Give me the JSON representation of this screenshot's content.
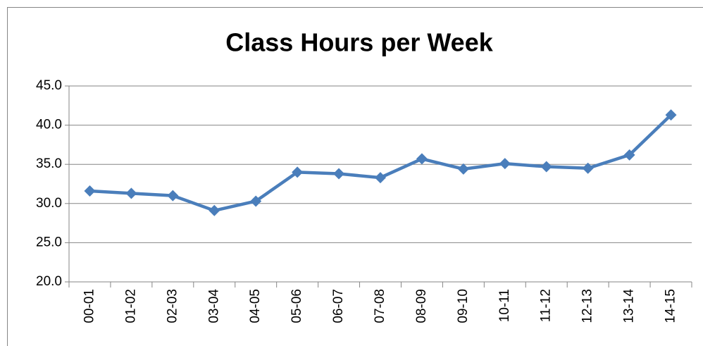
{
  "chart_data": {
    "type": "line",
    "title": "Class Hours per Week",
    "categories": [
      "00-01",
      "01-02",
      "02-03",
      "03-04",
      "04-05",
      "05-06",
      "06-07",
      "07-08",
      "08-09",
      "09-10",
      "10-11",
      "11-12",
      "12-13",
      "13-14",
      "14-15"
    ],
    "series": [
      {
        "name": "Class Hours per Week",
        "color": "#4a7ebb",
        "values": [
          31.6,
          31.3,
          31.0,
          29.1,
          30.3,
          34.0,
          33.8,
          33.3,
          35.7,
          34.4,
          35.1,
          34.7,
          34.5,
          36.2,
          41.3
        ]
      }
    ],
    "ylim": [
      20,
      45
    ],
    "yticks": [
      {
        "value": 20,
        "label": "20.0"
      },
      {
        "value": 25,
        "label": "25.0"
      },
      {
        "value": 30,
        "label": "30.0"
      },
      {
        "value": 35,
        "label": "35.0"
      },
      {
        "value": 40,
        "label": "40.0"
      },
      {
        "value": 45,
        "label": "45.0"
      }
    ],
    "grid": true
  }
}
